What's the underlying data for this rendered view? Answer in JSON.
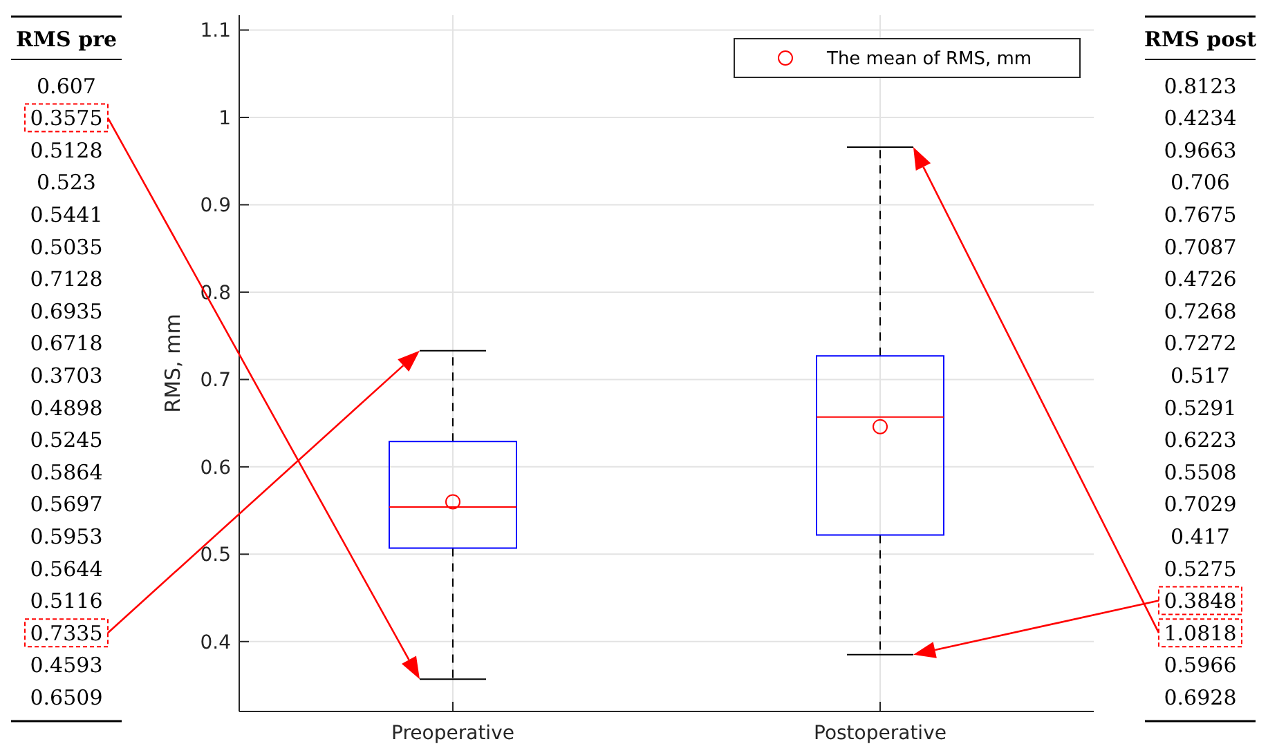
{
  "chart_data": {
    "type": "box",
    "categories": [
      "Preoperative",
      "Postoperative"
    ],
    "ylabel": "RMS, mm",
    "ylim": [
      0.32,
      1.117
    ],
    "yticks": [
      0.4,
      0.5,
      0.6,
      0.7,
      0.8,
      0.9,
      1,
      1.1
    ],
    "grid": true,
    "legend": "top right",
    "series": [
      {
        "color": "#0000ff",
        "boxes": [
          {
            "low": 0.357,
            "q1": 0.507,
            "median": 0.554,
            "q3": 0.629,
            "high": 0.733
          },
          {
            "low": 0.385,
            "q1": 0.522,
            "median": 0.657,
            "q3": 0.727,
            "high": 0.966
          }
        ]
      },
      {
        "type": "scatter",
        "name": "The mean of RMS, mm",
        "color": "#ff0000",
        "marker": "circle",
        "x": [
          "Preoperative",
          "Postoperative"
        ],
        "values": [
          0.56,
          0.646
        ]
      }
    ],
    "annotations": [
      "RMS pre",
      "0.607",
      "0.3575",
      "0.5128",
      "0.523",
      "0.5441",
      "0.5035",
      "0.7128",
      "0.6935",
      "0.6718",
      "0.3703",
      "0.4898",
      "0.5245",
      "0.5864",
      "0.5697",
      "0.5953",
      "0.5644",
      "0.5116",
      "0.7335",
      "0.4593",
      "0.6509",
      "RMS post",
      "0.8123",
      "0.4234",
      "0.9663",
      "0.706",
      "0.7675",
      "0.7087",
      "0.4726",
      "0.7268",
      "0.7272",
      "0.517",
      "0.5291",
      "0.6223",
      "0.5508",
      "0.7029",
      "0.417",
      "0.5275",
      "0.3848",
      "1.0818",
      "0.5966",
      "0.6928"
    ]
  }
}
